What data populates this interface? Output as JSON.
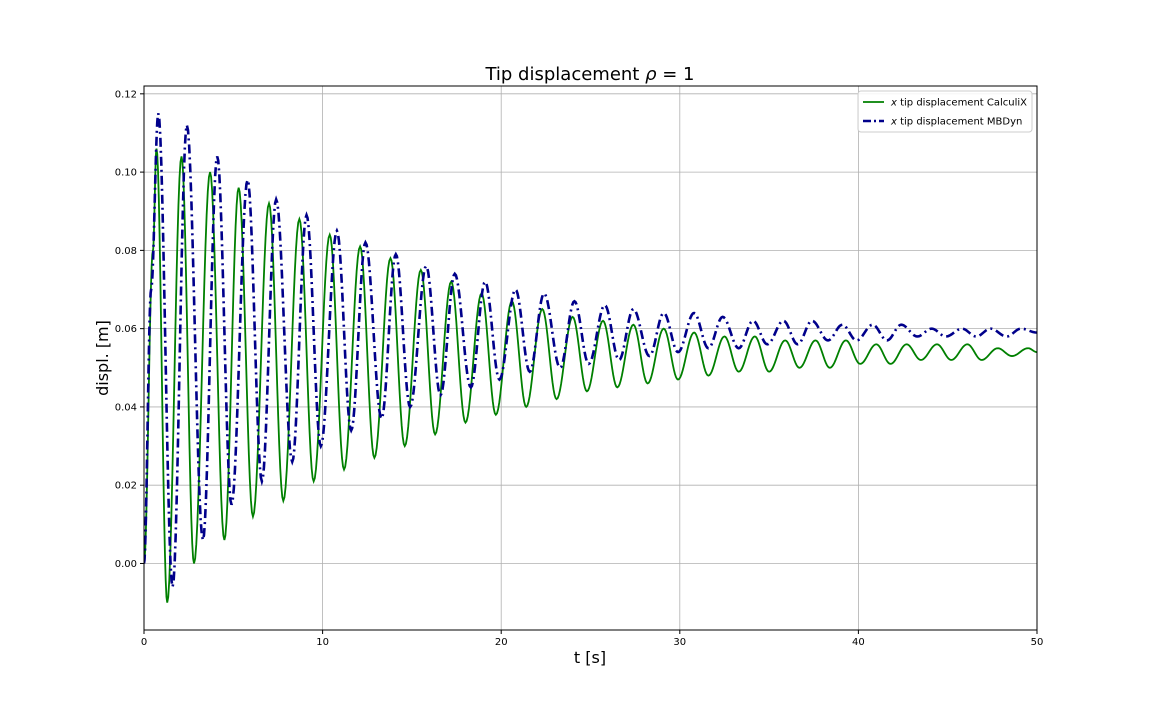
{
  "chart_data": {
    "type": "line",
    "title": "Tip displacement ρ = 1",
    "xlabel": "t [s]",
    "ylabel": "displ. [m]",
    "xlim": [
      0,
      50
    ],
    "ylim": [
      -0.017,
      0.122
    ],
    "xticks": [
      0,
      10,
      20,
      30,
      40,
      50
    ],
    "yticks": [
      0.0,
      0.02,
      0.04,
      0.06,
      0.08,
      0.1,
      0.12
    ],
    "ytick_labels": [
      "0.00",
      "0.02",
      "0.04",
      "0.06",
      "0.08",
      "0.10",
      "0.12"
    ],
    "grid": true,
    "legend_position": "top-right",
    "series": [
      {
        "name": "x tip displacement CalculiX",
        "legend_prefix": "x",
        "legend_suffix": " tip displacement CalculiX",
        "color": "#008000",
        "style": "solid",
        "x": [
          0.0,
          0.5,
          0.7,
          1.3,
          2.1,
          2.8,
          3.7,
          4.5,
          5.3,
          6.1,
          7.0,
          7.8,
          8.7,
          9.5,
          10.4,
          11.2,
          12.1,
          12.9,
          13.8,
          14.6,
          15.5,
          16.3,
          17.2,
          18.0,
          18.9,
          19.7,
          20.6,
          21.4,
          22.3,
          23.1,
          24.0,
          24.8,
          25.7,
          26.5,
          27.4,
          28.2,
          29.1,
          29.9,
          30.8,
          31.6,
          32.5,
          33.3,
          34.2,
          35.0,
          35.9,
          36.7,
          37.6,
          38.4,
          39.3,
          40.1,
          41.0,
          41.8,
          42.7,
          43.5,
          44.4,
          45.2,
          46.1,
          46.9,
          47.8,
          48.6,
          49.5,
          50.0
        ],
        "y": [
          0.0,
          0.08,
          0.106,
          -0.01,
          0.104,
          0.0,
          0.1,
          0.006,
          0.096,
          0.012,
          0.092,
          0.016,
          0.088,
          0.021,
          0.084,
          0.024,
          0.081,
          0.027,
          0.078,
          0.03,
          0.075,
          0.033,
          0.072,
          0.036,
          0.069,
          0.038,
          0.067,
          0.04,
          0.065,
          0.042,
          0.063,
          0.044,
          0.062,
          0.045,
          0.061,
          0.046,
          0.06,
          0.047,
          0.059,
          0.048,
          0.058,
          0.049,
          0.058,
          0.049,
          0.057,
          0.05,
          0.057,
          0.05,
          0.057,
          0.051,
          0.056,
          0.051,
          0.056,
          0.052,
          0.056,
          0.052,
          0.056,
          0.052,
          0.055,
          0.053,
          0.055,
          0.054
        ]
      },
      {
        "name": "x tip displacement MBDyn",
        "legend_prefix": "x",
        "legend_suffix": " tip displacement MBDyn",
        "color": "#00008b",
        "style": "dashdot",
        "x": [
          0.0,
          0.4,
          0.8,
          1.6,
          2.4,
          3.3,
          4.1,
          4.9,
          5.8,
          6.6,
          7.4,
          8.3,
          9.1,
          9.9,
          10.8,
          11.6,
          12.4,
          13.3,
          14.1,
          14.9,
          15.8,
          16.6,
          17.4,
          18.3,
          19.1,
          19.9,
          20.8,
          21.6,
          22.4,
          23.3,
          24.1,
          24.9,
          25.8,
          26.6,
          27.4,
          28.3,
          29.1,
          29.9,
          30.8,
          31.6,
          32.4,
          33.3,
          34.1,
          34.9,
          35.8,
          36.6,
          37.4,
          38.3,
          39.1,
          39.9,
          40.8,
          41.6,
          42.4,
          43.3,
          44.1,
          44.9,
          45.8,
          46.6,
          47.4,
          48.3,
          49.1,
          50.0
        ],
        "y": [
          0.0,
          0.07,
          0.115,
          -0.006,
          0.112,
          0.006,
          0.104,
          0.015,
          0.098,
          0.021,
          0.093,
          0.026,
          0.089,
          0.03,
          0.085,
          0.034,
          0.082,
          0.037,
          0.079,
          0.04,
          0.076,
          0.043,
          0.074,
          0.045,
          0.072,
          0.047,
          0.07,
          0.049,
          0.069,
          0.05,
          0.067,
          0.051,
          0.066,
          0.052,
          0.065,
          0.053,
          0.064,
          0.054,
          0.064,
          0.055,
          0.063,
          0.055,
          0.062,
          0.056,
          0.062,
          0.056,
          0.062,
          0.057,
          0.061,
          0.057,
          0.061,
          0.057,
          0.061,
          0.058,
          0.06,
          0.058,
          0.06,
          0.058,
          0.06,
          0.058,
          0.06,
          0.059
        ]
      }
    ]
  }
}
